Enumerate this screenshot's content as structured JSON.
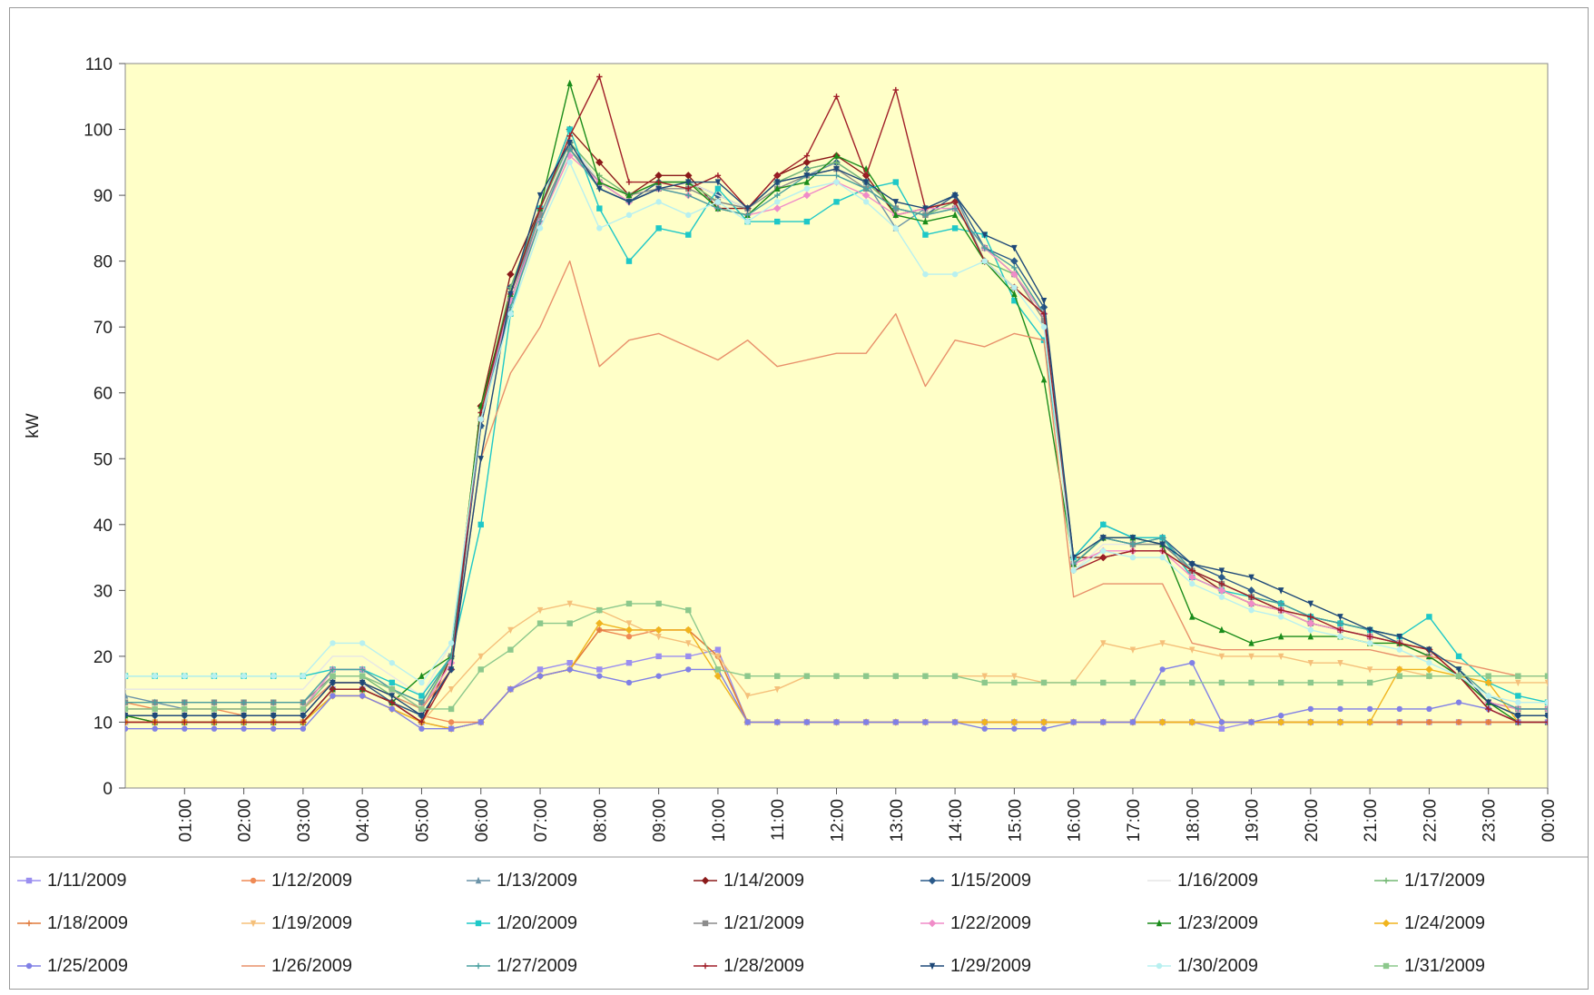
{
  "chart_data": {
    "type": "line",
    "title": "",
    "xlabel": "",
    "ylabel": "kW",
    "ylim": [
      0,
      110
    ],
    "yticks": [
      0,
      10,
      20,
      30,
      40,
      50,
      60,
      70,
      80,
      90,
      100,
      110
    ],
    "xlim_hours": [
      0,
      24
    ],
    "x_tick_labels": [
      "01:00",
      "02:00",
      "03:00",
      "04:00",
      "05:00",
      "06:00",
      "07:00",
      "08:00",
      "09:00",
      "10:00",
      "11:00",
      "12:00",
      "13:00",
      "14:00",
      "15:00",
      "16:00",
      "17:00",
      "18:00",
      "19:00",
      "20:00",
      "21:00",
      "22:00",
      "23:00",
      "00:00"
    ],
    "x_hours": [
      0,
      0.5,
      1,
      1.5,
      2,
      2.5,
      3,
      3.5,
      4,
      4.5,
      5,
      5.5,
      6,
      6.5,
      7,
      7.5,
      8,
      8.5,
      9,
      9.5,
      10,
      10.5,
      11,
      11.5,
      12,
      12.5,
      13,
      13.5,
      14,
      14.5,
      15,
      15.5,
      16,
      16.5,
      17,
      17.5,
      18,
      18.5,
      19,
      19.5,
      20,
      20.5,
      21,
      21.5,
      22,
      22.5,
      23,
      23.5,
      24
    ],
    "plot_background": "#ffffc8",
    "legend_position": "bottom",
    "series": [
      {
        "name": "1/11/2009",
        "color": "#9a8ef0",
        "marker": "square",
        "values": [
          10,
          10,
          10,
          10,
          10,
          10,
          10,
          15,
          15,
          13,
          10,
          9,
          10,
          15,
          18,
          19,
          18,
          19,
          20,
          20,
          21,
          10,
          10,
          10,
          10,
          10,
          10,
          10,
          10,
          10,
          10,
          10,
          10,
          10,
          10,
          10,
          10,
          9,
          10,
          10,
          10,
          10,
          10,
          10,
          10,
          10,
          10,
          10,
          10
        ]
      },
      {
        "name": "1/12/2009",
        "color": "#ef8a55",
        "marker": "circle",
        "values": [
          13,
          12,
          12,
          12,
          11,
          11,
          11,
          16,
          16,
          13,
          11,
          10,
          10,
          15,
          17,
          18,
          24,
          23,
          24,
          24,
          20,
          10,
          10,
          10,
          10,
          10,
          10,
          10,
          10,
          10,
          10,
          10,
          10,
          10,
          10,
          10,
          10,
          10,
          10,
          10,
          10,
          10,
          10,
          10,
          10,
          10,
          10,
          10,
          10
        ]
      },
      {
        "name": "1/13/2009",
        "color": "#6b93a8",
        "marker": "triangle",
        "values": [
          14,
          13,
          12,
          12,
          12,
          12,
          12,
          18,
          18,
          15,
          12,
          20,
          55,
          75,
          87,
          97,
          92,
          90,
          92,
          92,
          90,
          88,
          92,
          93,
          95,
          92,
          85,
          88,
          90,
          80,
          76,
          72,
          35,
          40,
          38,
          38,
          32,
          30,
          28,
          27,
          26,
          25,
          24,
          22,
          20,
          17,
          13,
          12,
          12
        ]
      },
      {
        "name": "1/14/2009",
        "color": "#8b1a1a",
        "marker": "diamond",
        "values": [
          11,
          10,
          10,
          10,
          10,
          10,
          10,
          15,
          15,
          13,
          10,
          20,
          58,
          78,
          88,
          100,
          95,
          90,
          93,
          93,
          88,
          88,
          93,
          95,
          96,
          93,
          87,
          88,
          89,
          80,
          76,
          72,
          35,
          35,
          36,
          36,
          33,
          30,
          28,
          27,
          25,
          24,
          23,
          22,
          21,
          17,
          12,
          10,
          10
        ]
      },
      {
        "name": "1/15/2009",
        "color": "#2a5a8a",
        "marker": "diamond",
        "values": [
          11,
          11,
          11,
          11,
          11,
          11,
          11,
          16,
          16,
          13,
          11,
          18,
          55,
          76,
          88,
          98,
          92,
          89,
          92,
          92,
          90,
          88,
          92,
          94,
          95,
          92,
          88,
          87,
          90,
          82,
          80,
          73,
          34,
          38,
          37,
          38,
          34,
          32,
          30,
          28,
          26,
          25,
          24,
          22,
          20,
          17,
          13,
          11,
          11
        ]
      },
      {
        "name": "1/16/2009",
        "color": "#e6e6e6",
        "marker": "none",
        "values": [
          15,
          15,
          15,
          15,
          15,
          15,
          15,
          20,
          20,
          17,
          14,
          22,
          56,
          74,
          86,
          98,
          92,
          90,
          92,
          92,
          90,
          88,
          92,
          94,
          95,
          92,
          88,
          87,
          88,
          82,
          78,
          72,
          33,
          37,
          37,
          37,
          33,
          31,
          29,
          27,
          25,
          24,
          23,
          22,
          20,
          17,
          14,
          13,
          13
        ]
      },
      {
        "name": "1/17/2009",
        "color": "#73b873",
        "marker": "plus",
        "values": [
          12,
          12,
          12,
          12,
          12,
          12,
          12,
          17,
          17,
          14,
          12,
          20,
          57,
          76,
          88,
          98,
          93,
          90,
          92,
          92,
          89,
          88,
          92,
          94,
          95,
          92,
          88,
          87,
          89,
          80,
          78,
          72,
          34,
          38,
          37,
          37,
          33,
          31,
          29,
          27,
          25,
          24,
          23,
          22,
          20,
          17,
          13,
          12,
          12
        ]
      },
      {
        "name": "1/18/2009",
        "color": "#e07a3c",
        "marker": "plus",
        "values": [
          10,
          10,
          10,
          10,
          10,
          10,
          10,
          14,
          14,
          12,
          10,
          9,
          10,
          15,
          17,
          18,
          24,
          24,
          24,
          24,
          20,
          10,
          10,
          10,
          10,
          10,
          10,
          10,
          10,
          10,
          10,
          10,
          10,
          10,
          10,
          10,
          10,
          10,
          10,
          10,
          10,
          10,
          10,
          10,
          10,
          10,
          10,
          10,
          10
        ]
      },
      {
        "name": "1/19/2009",
        "color": "#f5c07a",
        "marker": "triangle-down",
        "values": [
          10,
          10,
          10,
          10,
          10,
          10,
          10,
          14,
          14,
          12,
          10,
          15,
          20,
          24,
          27,
          28,
          27,
          25,
          23,
          22,
          20,
          14,
          15,
          17,
          17,
          17,
          17,
          17,
          17,
          17,
          17,
          16,
          16,
          22,
          21,
          22,
          21,
          20,
          20,
          20,
          19,
          19,
          18,
          18,
          17,
          17,
          16,
          16,
          16
        ]
      },
      {
        "name": "1/20/2009",
        "color": "#1ec8c8",
        "marker": "square",
        "values": [
          17,
          17,
          17,
          17,
          17,
          17,
          17,
          18,
          18,
          16,
          14,
          20,
          40,
          72,
          88,
          100,
          88,
          80,
          85,
          84,
          91,
          86,
          86,
          86,
          89,
          91,
          92,
          84,
          85,
          84,
          74,
          68,
          35,
          40,
          38,
          38,
          32,
          30,
          29,
          28,
          26,
          25,
          24,
          23,
          26,
          20,
          16,
          14,
          13
        ]
      },
      {
        "name": "1/21/2009",
        "color": "#8c8c8c",
        "marker": "square",
        "values": [
          13,
          13,
          13,
          13,
          13,
          13,
          13,
          17,
          17,
          15,
          13,
          20,
          56,
          74,
          87,
          97,
          92,
          90,
          91,
          91,
          89,
          88,
          91,
          93,
          94,
          91,
          88,
          87,
          88,
          82,
          78,
          71,
          34,
          38,
          37,
          37,
          33,
          31,
          29,
          27,
          25,
          24,
          23,
          22,
          20,
          17,
          13,
          12,
          12
        ]
      },
      {
        "name": "1/22/2009",
        "color": "#f08cc8",
        "marker": "diamond",
        "values": [
          12,
          12,
          12,
          12,
          12,
          12,
          12,
          18,
          18,
          15,
          12,
          19,
          56,
          74,
          86,
          96,
          92,
          89,
          91,
          90,
          88,
          87,
          88,
          90,
          92,
          90,
          87,
          88,
          88,
          82,
          78,
          72,
          34,
          36,
          36,
          36,
          32,
          30,
          28,
          27,
          25,
          24,
          23,
          22,
          20,
          17,
          13,
          12,
          12
        ]
      },
      {
        "name": "1/23/2009",
        "color": "#1a8c1a",
        "marker": "triangle",
        "values": [
          11,
          10,
          10,
          10,
          10,
          10,
          10,
          15,
          15,
          13,
          17,
          20,
          58,
          75,
          88,
          107,
          92,
          90,
          92,
          92,
          88,
          87,
          91,
          92,
          96,
          94,
          87,
          86,
          87,
          80,
          75,
          62,
          34,
          38,
          38,
          37,
          26,
          24,
          22,
          23,
          23,
          23,
          22,
          22,
          20,
          17,
          13,
          10,
          10
        ]
      },
      {
        "name": "1/24/2009",
        "color": "#f0b41e",
        "marker": "diamond",
        "values": [
          10,
          10,
          10,
          10,
          10,
          10,
          10,
          14,
          14,
          12,
          10,
          9,
          10,
          15,
          17,
          18,
          25,
          24,
          24,
          24,
          17,
          10,
          10,
          10,
          10,
          10,
          10,
          10,
          10,
          10,
          10,
          10,
          10,
          10,
          10,
          10,
          10,
          10,
          10,
          10,
          10,
          10,
          10,
          18,
          18,
          17,
          16,
          10,
          10
        ]
      },
      {
        "name": "1/25/2009",
        "color": "#8080e6",
        "marker": "circle",
        "values": [
          9,
          9,
          9,
          9,
          9,
          9,
          9,
          14,
          14,
          12,
          9,
          9,
          10,
          15,
          17,
          18,
          17,
          16,
          17,
          18,
          18,
          10,
          10,
          10,
          10,
          10,
          10,
          10,
          10,
          9,
          9,
          9,
          10,
          10,
          10,
          18,
          19,
          10,
          10,
          11,
          12,
          12,
          12,
          12,
          12,
          13,
          12,
          10,
          10
        ]
      },
      {
        "name": "1/26/2009",
        "color": "#e8906a",
        "marker": "none",
        "values": [
          12,
          12,
          12,
          12,
          12,
          12,
          12,
          16,
          16,
          14,
          12,
          18,
          50,
          63,
          70,
          80,
          64,
          68,
          69,
          67,
          65,
          68,
          64,
          65,
          66,
          66,
          72,
          61,
          68,
          67,
          69,
          68,
          29,
          31,
          31,
          31,
          22,
          21,
          21,
          21,
          21,
          21,
          21,
          20,
          20,
          19,
          18,
          17,
          17
        ]
      },
      {
        "name": "1/27/2009",
        "color": "#4aa0a0",
        "marker": "plus",
        "values": [
          13,
          13,
          13,
          13,
          13,
          13,
          13,
          18,
          18,
          15,
          13,
          20,
          56,
          73,
          86,
          97,
          91,
          89,
          91,
          90,
          88,
          87,
          90,
          93,
          93,
          91,
          88,
          87,
          88,
          82,
          79,
          72,
          34,
          38,
          37,
          38,
          33,
          31,
          29,
          28,
          26,
          25,
          24,
          23,
          21,
          18,
          14,
          12,
          12
        ]
      },
      {
        "name": "1/28/2009",
        "color": "#a01e28",
        "marker": "plus",
        "values": [
          10,
          10,
          10,
          10,
          10,
          10,
          10,
          15,
          15,
          13,
          10,
          18,
          57,
          75,
          88,
          99,
          108,
          92,
          92,
          91,
          93,
          88,
          93,
          96,
          105,
          93,
          106,
          88,
          89,
          80,
          76,
          72,
          33,
          35,
          36,
          36,
          33,
          31,
          29,
          27,
          26,
          24,
          23,
          22,
          21,
          17,
          12,
          10,
          10
        ]
      },
      {
        "name": "1/29/2009",
        "color": "#1e4878",
        "marker": "triangle-down",
        "values": [
          11,
          11,
          11,
          11,
          11,
          11,
          11,
          16,
          16,
          14,
          11,
          18,
          50,
          75,
          90,
          98,
          91,
          89,
          91,
          92,
          92,
          88,
          92,
          93,
          94,
          92,
          89,
          88,
          90,
          84,
          82,
          74,
          35,
          38,
          38,
          37,
          34,
          33,
          32,
          30,
          28,
          26,
          24,
          23,
          21,
          18,
          13,
          11,
          11
        ]
      },
      {
        "name": "1/30/2009",
        "color": "#b8f0f0",
        "marker": "circle",
        "values": [
          17,
          17,
          17,
          17,
          17,
          17,
          17,
          22,
          22,
          19,
          16,
          22,
          56,
          72,
          85,
          95,
          85,
          87,
          89,
          87,
          89,
          86,
          89,
          91,
          92,
          89,
          85,
          78,
          78,
          80,
          76,
          70,
          33,
          36,
          35,
          35,
          31,
          29,
          27,
          26,
          24,
          23,
          22,
          21,
          19,
          17,
          14,
          13,
          13
        ]
      },
      {
        "name": "1/31/2009",
        "color": "#8cc88c",
        "marker": "square",
        "values": [
          12,
          12,
          12,
          12,
          12,
          12,
          12,
          17,
          17,
          15,
          12,
          12,
          18,
          21,
          25,
          25,
          27,
          28,
          28,
          27,
          18,
          17,
          17,
          17,
          17,
          17,
          17,
          17,
          17,
          16,
          16,
          16,
          16,
          16,
          16,
          16,
          16,
          16,
          16,
          16,
          16,
          16,
          16,
          17,
          17,
          17,
          17,
          17,
          17
        ]
      }
    ]
  }
}
